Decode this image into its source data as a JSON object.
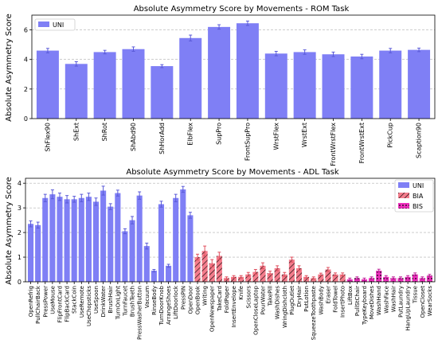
{
  "chart_data": [
    {
      "type": "bar",
      "title": "Absolute Asymmetry Score by Movements - ROM Task",
      "xlabel": "",
      "ylabel": "Absolute Asymmetry Score",
      "ylim": [
        0,
        7
      ],
      "yticks": [
        0,
        2,
        4,
        6
      ],
      "grid": true,
      "legend_position": "top-left",
      "legend": [
        "UNI"
      ],
      "colors": {
        "UNI": "#7f7ff5"
      },
      "categories": [
        "ShFlex90",
        "ShExt",
        "ShRot",
        "ShAbd90",
        "ShHorAdd",
        "ElbFlex",
        "SupPro",
        "FrontSupPro",
        "WrstFlex",
        "WrstExt",
        "FrontWrstFlex",
        "FrontWrstExt",
        "PickCup",
        "Scaption90"
      ],
      "series": [
        {
          "name": "UNI",
          "values": [
            4.6,
            3.7,
            4.5,
            4.7,
            3.55,
            5.45,
            6.2,
            6.45,
            4.4,
            4.5,
            4.35,
            4.2,
            4.6,
            4.65
          ],
          "errors": [
            0.15,
            0.15,
            0.12,
            0.15,
            0.1,
            0.2,
            0.15,
            0.15,
            0.15,
            0.15,
            0.15,
            0.15,
            0.15,
            0.12
          ]
        }
      ]
    },
    {
      "type": "bar",
      "title": "Absolute Asymmetry Score by Movements - ADL Task",
      "xlabel": "",
      "ylabel": "Absolute Asymmetry Score",
      "ylim": [
        0,
        4.2
      ],
      "yticks": [
        0,
        1,
        2,
        3,
        4
      ],
      "grid": true,
      "legend_position": "top-right",
      "legend": [
        "UNI",
        "BIA",
        "BIS"
      ],
      "colors": {
        "UNI": "#7f7ff5",
        "BIA": "#f47c8c",
        "BIS": "#ee2fbd"
      },
      "categories": [
        "OpenRefrig",
        "PullChairBack",
        "PressPower",
        "UseMouse",
        "FlipFrontCard",
        "FlipBackCard",
        "StackCoin",
        "UseRemote",
        "UseChopsticks",
        "UseSpoon",
        "DrinkWater",
        "BrushHair",
        "TurnOnLight",
        "TurnFaucet",
        "BrushTeeth",
        "PressWasherButton",
        "Vacuum",
        "RinseBody",
        "TurnDoorKnob",
        "ArrangeShoes",
        "LiftDoorlock",
        "PressPIN",
        "OpenDoor",
        "OpenBook",
        "Writing",
        "OpenNewspaper",
        "TakeCard",
        "FoldPaper",
        "InsertEnvelope",
        "Knife",
        "Scissors",
        "OpenCloseLaptop",
        "PourWater",
        "TakePill",
        "WashDishes",
        "WringDishcloth",
        "PlugOutlet",
        "DryHair",
        "PutLotion",
        "SqueezeToothpaste",
        "WashBody",
        "Eraser",
        "FoldTowel",
        "InsertPhoto",
        "LiftBox",
        "PullStChair",
        "TypeKeyboard",
        "MoveDishes",
        "WashHand",
        "WashFace",
        "WashHair",
        "PutLaundry",
        "HangUpLaundry",
        "Tissue",
        "OpenCloset",
        "WearSocks"
      ],
      "bar_groups": [
        "UNI",
        "UNI",
        "UNI",
        "UNI",
        "UNI",
        "UNI",
        "UNI",
        "UNI",
        "UNI",
        "UNI",
        "UNI",
        "UNI",
        "UNI",
        "UNI",
        "UNI",
        "UNI",
        "UNI",
        "UNI",
        "UNI",
        "UNI",
        "UNI",
        "UNI",
        "UNI",
        "BIA",
        "BIA",
        "BIA",
        "BIA",
        "BIA",
        "BIA",
        "BIA",
        "BIA",
        "BIA",
        "BIA",
        "BIA",
        "BIA",
        "BIA",
        "BIA",
        "BIA",
        "BIA",
        "BIA",
        "BIA",
        "BIA",
        "BIA",
        "BIA",
        "BIS",
        "BIS",
        "BIS",
        "BIS",
        "BIS",
        "BIS",
        "BIS",
        "BIS",
        "BIS",
        "BIS",
        "BIS",
        "BIS"
      ],
      "values": [
        2.35,
        2.3,
        3.4,
        3.55,
        3.45,
        3.35,
        3.35,
        3.4,
        3.45,
        3.25,
        3.7,
        3.05,
        3.6,
        2.05,
        2.5,
        3.5,
        1.45,
        0.45,
        3.15,
        0.65,
        3.4,
        3.75,
        2.7,
        1.0,
        1.25,
        0.75,
        1.05,
        0.15,
        0.2,
        0.2,
        0.3,
        0.4,
        0.65,
        0.35,
        0.55,
        0.3,
        0.9,
        0.55,
        0.2,
        0.15,
        0.3,
        0.5,
        0.3,
        0.3,
        0.1,
        0.15,
        0.1,
        0.15,
        0.45,
        0.2,
        0.15,
        0.15,
        0.2,
        0.3,
        0.15,
        0.25
      ],
      "errors": [
        0.12,
        0.12,
        0.15,
        0.18,
        0.15,
        0.15,
        0.12,
        0.15,
        0.15,
        0.15,
        0.18,
        0.12,
        0.12,
        0.1,
        0.15,
        0.15,
        0.12,
        0.05,
        0.12,
        0.06,
        0.15,
        0.12,
        0.12,
        0.12,
        0.2,
        0.15,
        0.15,
        0.05,
        0.05,
        0.05,
        0.08,
        0.1,
        0.12,
        0.08,
        0.1,
        0.08,
        0.1,
        0.1,
        0.05,
        0.05,
        0.05,
        0.08,
        0.06,
        0.06,
        0.05,
        0.05,
        0.05,
        0.05,
        0.06,
        0.05,
        0.05,
        0.05,
        0.05,
        0.06,
        0.05,
        0.05
      ]
    }
  ]
}
